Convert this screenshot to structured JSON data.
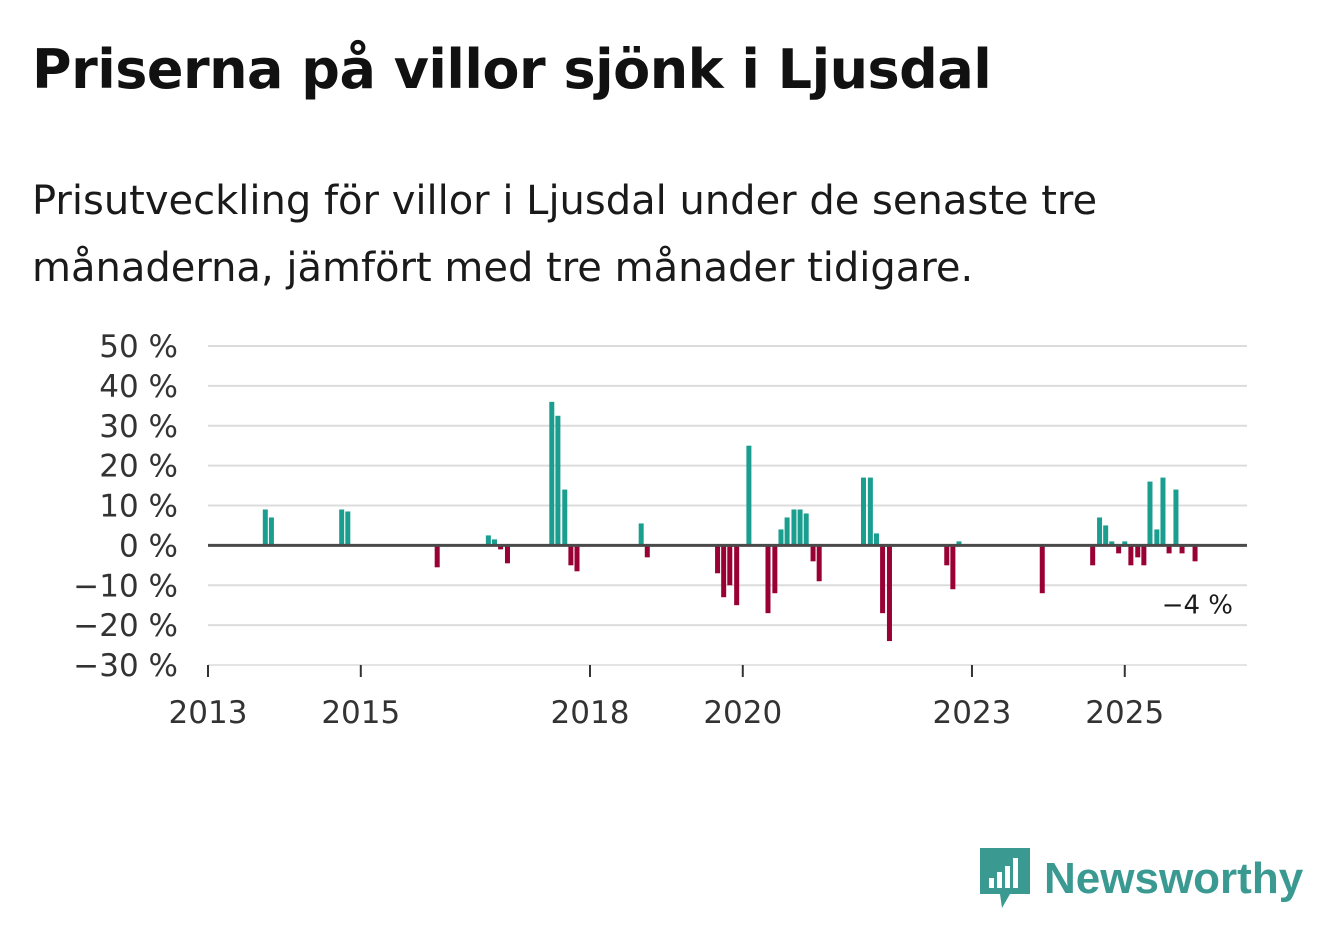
{
  "title": "Priserna på villor sjönk i Ljusdal",
  "subtitle": "Prisutveckling för villor i Ljusdal under de senaste tre månaderna, jämfört med tre månader tidigare.",
  "brand": "Newsworthy",
  "colors": {
    "positive": "#1a9e8f",
    "negative": "#990033",
    "grid": "#dcdcdc",
    "zero": "#4a4a4a",
    "brand": "#3a9a92"
  },
  "chart_data": {
    "type": "bar",
    "title": "Priserna på villor sjönk i Ljusdal",
    "ylabel": "",
    "xlabel": "",
    "ylim": [
      -30,
      50
    ],
    "xlim": [
      2013.0,
      2026.6
    ],
    "y_ticks": [
      50,
      40,
      30,
      20,
      10,
      0,
      -10,
      -20,
      -30
    ],
    "y_tick_labels": [
      "50 %",
      "40 %",
      "30 %",
      "20 %",
      "10 %",
      "0 %",
      "−10 %",
      "−20 %",
      "−30 %"
    ],
    "x_ticks": [
      2013,
      2015,
      2018,
      2020,
      2023,
      2025
    ],
    "x_tick_labels": [
      "2013",
      "2015",
      "2018",
      "2020",
      "2023",
      "2025"
    ],
    "end_label": "−4 %",
    "series": [
      {
        "name": "Prisutveckling",
        "points": [
          {
            "t": 2013.75,
            "v": 9
          },
          {
            "t": 2013.83,
            "v": 7
          },
          {
            "t": 2014.75,
            "v": 9
          },
          {
            "t": 2014.83,
            "v": 8.5
          },
          {
            "t": 2016.0,
            "v": -5.5
          },
          {
            "t": 2016.67,
            "v": 2.5
          },
          {
            "t": 2016.75,
            "v": 1.5
          },
          {
            "t": 2016.83,
            "v": -1
          },
          {
            "t": 2016.92,
            "v": -4.5
          },
          {
            "t": 2017.5,
            "v": 36
          },
          {
            "t": 2017.58,
            "v": 32.5
          },
          {
            "t": 2017.67,
            "v": 14
          },
          {
            "t": 2017.75,
            "v": -5
          },
          {
            "t": 2017.83,
            "v": -6.5
          },
          {
            "t": 2018.67,
            "v": 5.5
          },
          {
            "t": 2018.75,
            "v": -3
          },
          {
            "t": 2019.67,
            "v": -7
          },
          {
            "t": 2019.75,
            "v": -13
          },
          {
            "t": 2019.83,
            "v": -10
          },
          {
            "t": 2019.92,
            "v": -15
          },
          {
            "t": 2020.08,
            "v": 25
          },
          {
            "t": 2020.33,
            "v": -17
          },
          {
            "t": 2020.42,
            "v": -12
          },
          {
            "t": 2020.5,
            "v": 4
          },
          {
            "t": 2020.58,
            "v": 7
          },
          {
            "t": 2020.67,
            "v": 9
          },
          {
            "t": 2020.75,
            "v": 9
          },
          {
            "t": 2020.83,
            "v": 8
          },
          {
            "t": 2020.92,
            "v": -4
          },
          {
            "t": 2021.0,
            "v": -9
          },
          {
            "t": 2021.58,
            "v": 17
          },
          {
            "t": 2021.67,
            "v": 17
          },
          {
            "t": 2021.75,
            "v": 3
          },
          {
            "t": 2021.83,
            "v": -17
          },
          {
            "t": 2021.92,
            "v": -24
          },
          {
            "t": 2022.67,
            "v": -5
          },
          {
            "t": 2022.75,
            "v": -11
          },
          {
            "t": 2022.83,
            "v": 1
          },
          {
            "t": 2023.92,
            "v": -12
          },
          {
            "t": 2024.58,
            "v": -5
          },
          {
            "t": 2024.67,
            "v": 7
          },
          {
            "t": 2024.75,
            "v": 5
          },
          {
            "t": 2024.83,
            "v": 1
          },
          {
            "t": 2024.92,
            "v": -2
          },
          {
            "t": 2025.0,
            "v": 1
          },
          {
            "t": 2025.08,
            "v": -5
          },
          {
            "t": 2025.17,
            "v": -3
          },
          {
            "t": 2025.25,
            "v": -5
          },
          {
            "t": 2025.33,
            "v": 16
          },
          {
            "t": 2025.42,
            "v": 4
          },
          {
            "t": 2025.5,
            "v": 17
          },
          {
            "t": 2025.58,
            "v": -2
          },
          {
            "t": 2025.67,
            "v": 14
          },
          {
            "t": 2025.75,
            "v": -2
          },
          {
            "t": 2025.92,
            "v": -4
          }
        ]
      }
    ]
  }
}
